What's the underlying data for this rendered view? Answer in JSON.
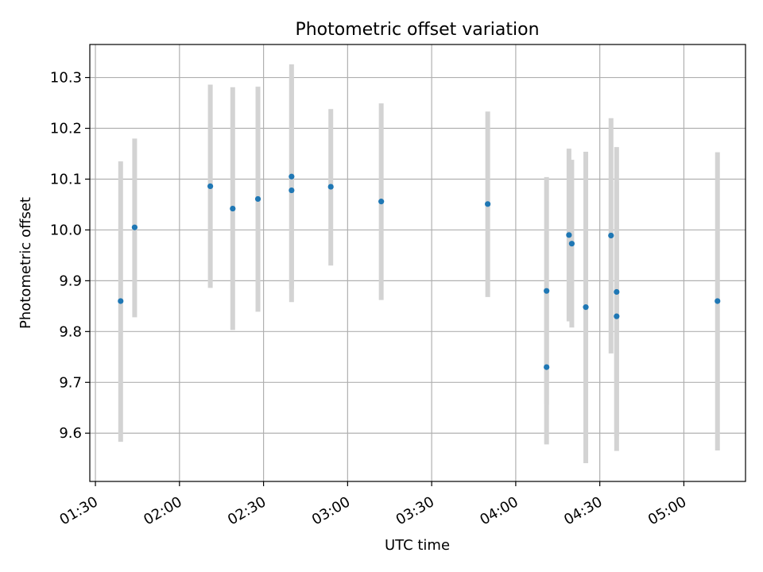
{
  "chart_data": {
    "type": "scatter",
    "title": "Photometric offset variation",
    "xlabel": "UTC time",
    "ylabel": "Photometric offset",
    "x_ticks": [
      "01:30",
      "02:00",
      "02:30",
      "03:00",
      "03:30",
      "04:00",
      "04:30",
      "05:00"
    ],
    "y_ticks": [
      "9.6",
      "9.7",
      "9.8",
      "9.9",
      "10.0",
      "10.1",
      "10.2",
      "10.3"
    ],
    "xlim": [
      "01:28",
      "05:22"
    ],
    "ylim": [
      9.505,
      10.365
    ],
    "grid": true,
    "marker_color": "#1f77b4",
    "errorbar_color": "#d3d3d3",
    "points": [
      {
        "x": "01:39",
        "y": 9.86,
        "low": 9.583,
        "high": 10.135
      },
      {
        "x": "01:44",
        "y": 10.005,
        "low": 9.828,
        "high": 10.18
      },
      {
        "x": "02:11",
        "y": 10.086,
        "low": 9.886,
        "high": 10.286
      },
      {
        "x": "02:19",
        "y": 10.042,
        "low": 9.803,
        "high": 10.281
      },
      {
        "x": "02:28",
        "y": 10.061,
        "low": 9.839,
        "high": 10.282
      },
      {
        "x": "02:40",
        "y": 10.078,
        "low": 9.858,
        "high": 10.3
      },
      {
        "x": "02:40",
        "y": 10.105,
        "low": 9.884,
        "high": 10.326
      },
      {
        "x": "02:54",
        "y": 10.085,
        "low": 9.93,
        "high": 10.238
      },
      {
        "x": "03:12",
        "y": 10.056,
        "low": 9.862,
        "high": 10.249
      },
      {
        "x": "03:50",
        "y": 10.051,
        "low": 9.868,
        "high": 10.233
      },
      {
        "x": "04:11",
        "y": 9.73,
        "low": 9.578,
        "high": 9.88
      },
      {
        "x": "04:11",
        "y": 9.88,
        "low": 9.656,
        "high": 10.104
      },
      {
        "x": "04:19",
        "y": 9.99,
        "low": 9.82,
        "high": 10.16
      },
      {
        "x": "04:20",
        "y": 9.973,
        "low": 9.808,
        "high": 10.138
      },
      {
        "x": "04:25",
        "y": 9.848,
        "low": 9.541,
        "high": 10.154
      },
      {
        "x": "04:34",
        "y": 9.989,
        "low": 9.757,
        "high": 10.22
      },
      {
        "x": "04:36",
        "y": 9.83,
        "low": 9.565,
        "high": 10.095
      },
      {
        "x": "04:36",
        "y": 9.878,
        "low": 9.594,
        "high": 10.163
      },
      {
        "x": "05:12",
        "y": 9.86,
        "low": 9.566,
        "high": 10.153
      }
    ]
  }
}
